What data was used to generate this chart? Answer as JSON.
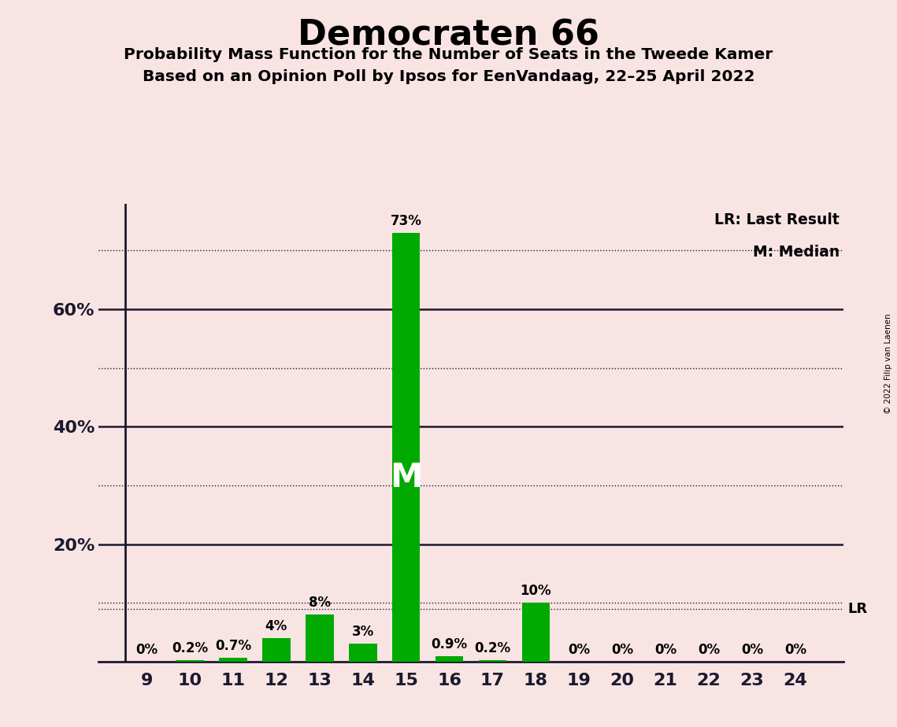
{
  "title": "Democraten 66",
  "subtitle1": "Probability Mass Function for the Number of Seats in the Tweede Kamer",
  "subtitle2": "Based on an Opinion Poll by Ipsos for EenVandaag, 22–25 April 2022",
  "copyright_text": "© 2022 Filip van Laenen",
  "seats": [
    9,
    10,
    11,
    12,
    13,
    14,
    15,
    16,
    17,
    18,
    19,
    20,
    21,
    22,
    23,
    24
  ],
  "values": [
    0.0,
    0.2,
    0.7,
    4.0,
    8.0,
    3.0,
    73.0,
    0.9,
    0.2,
    10.0,
    0.0,
    0.0,
    0.0,
    0.0,
    0.0,
    0.0
  ],
  "labels": [
    "0%",
    "0.2%",
    "0.7%",
    "4%",
    "8%",
    "3%",
    "73%",
    "0.9%",
    "0.2%",
    "10%",
    "0%",
    "0%",
    "0%",
    "0%",
    "0%",
    "0%"
  ],
  "bar_color": "#00aa00",
  "median_seat": 15,
  "median_label": "M",
  "lr_line_value": 9.0,
  "lr_label": "LR",
  "background_color": "#f9e4e4",
  "ylim": [
    0,
    78
  ],
  "solid_yticks": [
    20,
    40,
    60
  ],
  "dotted_yticks": [
    10,
    30,
    50,
    70
  ],
  "ytick_labels": [
    "20%",
    "40%",
    "60%"
  ],
  "legend_text1": "LR: Last Result",
  "legend_text2": "M: Median"
}
